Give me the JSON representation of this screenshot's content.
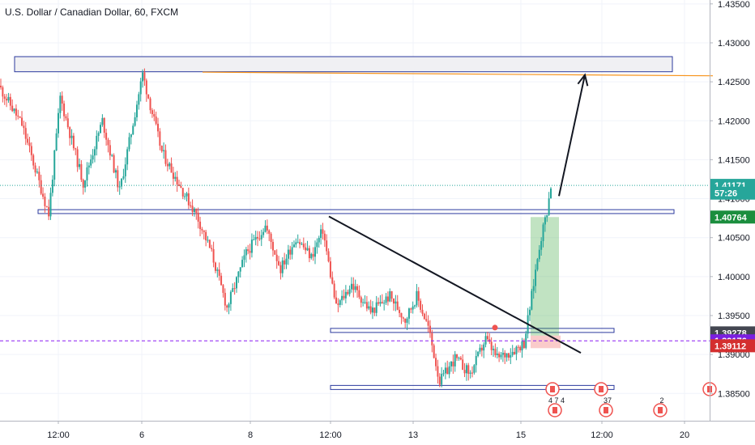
{
  "header": {
    "title": "U.S. Dollar / Canadian Dollar, 60, FXCM"
  },
  "colors": {
    "up": "#26a69a",
    "down": "#ef5350",
    "zone_stroke": "#2b3a9e",
    "trendline": "#131722",
    "arrow": "#131722",
    "orange": "#f7931a",
    "green_zone": "#4caf50",
    "red_zone": "#ef5350",
    "purple": "#8c1cf2",
    "price_dotted": "#26a69a",
    "tag_dark": "#434651",
    "tag_green": "#1b8e3e",
    "tag_red": "#d42f2f",
    "tag_teal": "#26a69a",
    "tag_purple": "#7b1fe0"
  },
  "chart_data": {
    "type": "candlestick",
    "y_axis": {
      "ylim": [
        1.3815,
        1.4355
      ],
      "ticks": [
        "1.43500",
        "1.43000",
        "1.42500",
        "1.42000",
        "1.41500",
        "1.41000",
        "1.40500",
        "1.40000",
        "1.39500",
        "1.39000",
        "1.38500"
      ]
    },
    "x_axis": {
      "ticks": [
        "12:00",
        "6",
        "8",
        "12:00",
        "13",
        "15",
        "12:00",
        "20"
      ]
    },
    "price_tags": [
      {
        "label": "1.41171",
        "value": 1.41171,
        "color": "tag_teal"
      },
      {
        "label": "57:26",
        "value": 1.41071,
        "color": "tag_teal"
      },
      {
        "label": "1.40764",
        "value": 1.40764,
        "color": "tag_green"
      },
      {
        "label": "1.39278",
        "value": 1.39278,
        "color": "tag_dark"
      },
      {
        "label": "1.39176",
        "value": 1.39176,
        "color": "tag_purple"
      },
      {
        "label": "1.39112",
        "value": 1.39112,
        "color": "tag_red"
      }
    ],
    "segments": [
      {
        "n": 12,
        "from": 1.4245,
        "to": 1.4195
      },
      {
        "n": 14,
        "from": 1.4195,
        "to": 1.408
      },
      {
        "n": 6,
        "from": 1.408,
        "to": 1.423
      },
      {
        "n": 12,
        "from": 1.423,
        "to": 1.412
      },
      {
        "n": 10,
        "from": 1.412,
        "to": 1.42
      },
      {
        "n": 9,
        "from": 1.42,
        "to": 1.411
      },
      {
        "n": 8,
        "from": 1.411,
        "to": 1.421
      },
      {
        "n": 4,
        "from": 1.421,
        "to": 1.426
      },
      {
        "n": 10,
        "from": 1.426,
        "to": 1.416
      },
      {
        "n": 12,
        "from": 1.416,
        "to": 1.4105
      },
      {
        "n": 6,
        "from": 1.4105,
        "to": 1.408
      },
      {
        "n": 8,
        "from": 1.408,
        "to": 1.403
      },
      {
        "n": 8,
        "from": 1.403,
        "to": 1.396
      },
      {
        "n": 10,
        "from": 1.396,
        "to": 1.403
      },
      {
        "n": 10,
        "from": 1.403,
        "to": 1.4065
      },
      {
        "n": 8,
        "from": 1.4065,
        "to": 1.401
      },
      {
        "n": 8,
        "from": 1.401,
        "to": 1.405
      },
      {
        "n": 8,
        "from": 1.405,
        "to": 1.4025
      },
      {
        "n": 6,
        "from": 1.4025,
        "to": 1.406
      },
      {
        "n": 7,
        "from": 1.406,
        "to": 1.396
      },
      {
        "n": 8,
        "from": 1.396,
        "to": 1.399
      },
      {
        "n": 10,
        "from": 1.399,
        "to": 1.3955
      },
      {
        "n": 10,
        "from": 1.3955,
        "to": 1.3975
      },
      {
        "n": 8,
        "from": 1.3975,
        "to": 1.3945
      },
      {
        "n": 6,
        "from": 1.3945,
        "to": 1.3975
      },
      {
        "n": 6,
        "from": 1.3975,
        "to": 1.3935
      },
      {
        "n": 6,
        "from": 1.3935,
        "to": 1.3865
      },
      {
        "n": 8,
        "from": 1.3865,
        "to": 1.3895
      },
      {
        "n": 8,
        "from": 1.3895,
        "to": 1.3875
      },
      {
        "n": 8,
        "from": 1.3875,
        "to": 1.392
      },
      {
        "n": 6,
        "from": 1.392,
        "to": 1.3895
      },
      {
        "n": 8,
        "from": 1.3895,
        "to": 1.3905
      },
      {
        "n": 6,
        "from": 1.3905,
        "to": 1.3915
      },
      {
        "n": 4,
        "from": 1.3915,
        "to": 1.3975
      },
      {
        "n": 4,
        "from": 1.3975,
        "to": 1.404
      },
      {
        "n": 4,
        "from": 1.404,
        "to": 1.4085
      },
      {
        "n": 2,
        "from": 1.4085,
        "to": 1.4117
      }
    ],
    "zones": [
      {
        "x0": 18,
        "x1": 830,
        "y0": 1.42823,
        "y1": 1.42629,
        "fill": "#f0f0f3"
      },
      {
        "x0": 47,
        "x1": 832,
        "y0": 1.40859,
        "y1": 1.40809,
        "fill": "none"
      },
      {
        "x0": 408,
        "x1": 758,
        "y0": 1.39335,
        "y1": 1.39283,
        "fill": "none"
      },
      {
        "x0": 408,
        "x1": 758,
        "y0": 1.38603,
        "y1": 1.38551,
        "fill": "none"
      }
    ],
    "trendline": {
      "x0": 406,
      "y0": 1.40772,
      "x1": 717,
      "y1": 1.39021
    },
    "orange_line": {
      "x0": 250,
      "y0": 1.42624,
      "x1": 880,
      "y1": 1.42577
    },
    "target_arrow": {
      "x0": 690,
      "y0": 1.41034,
      "x1": 722,
      "y1": 1.42588
    },
    "position": {
      "x0": 655,
      "x1": 690,
      "entry": 1.39243,
      "target": 1.40764,
      "stop": 1.39144
    },
    "events": [
      {
        "x": 682,
        "label": ""
      },
      {
        "x": 742,
        "label": ""
      },
      {
        "x": 876,
        "label": ""
      },
      {
        "x": 685,
        "label": "4 7 4"
      },
      {
        "x": 748,
        "label": "37"
      },
      {
        "x": 815,
        "label": "2"
      }
    ]
  }
}
